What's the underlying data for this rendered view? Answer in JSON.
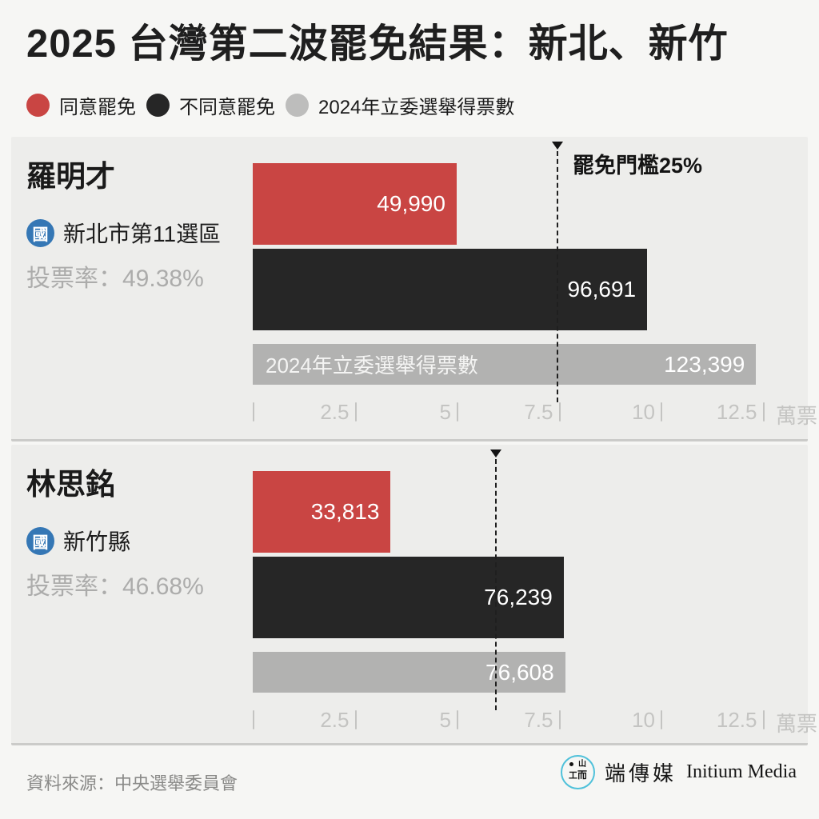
{
  "title": "2025 台灣第二波罷免結果：新北、新竹",
  "legend": {
    "items": [
      {
        "label": "同意罷免",
        "color": "#C94543"
      },
      {
        "label": "不同意罷免",
        "color": "#262626"
      },
      {
        "label": "2024年立委選舉得票數",
        "color": "#BDBDBC"
      }
    ]
  },
  "axis": {
    "tick_labels": [
      "2.5",
      "5",
      "7.5",
      "10",
      "12.5"
    ],
    "unit": "萬票"
  },
  "chart_data": [
    {
      "type": "bar",
      "orientation": "horizontal",
      "title": "羅明才",
      "party": "國",
      "district": "新北市第11選區",
      "turnout_label": "投票率：49.38%",
      "turnout_pct": 49.38,
      "categories": [
        "同意罷免",
        "不同意罷免",
        "2024年立委選舉得票數"
      ],
      "values": [
        49990,
        96691,
        123399
      ],
      "value_labels": [
        "49,990",
        "96,691",
        "123,399"
      ],
      "bar_colors": [
        "#C94543",
        "#262626",
        "#B2B2B1"
      ],
      "inbar_category_label": "2024年立委選舉得票數",
      "x_ticks": [
        2.5,
        5,
        7.5,
        10,
        12.5
      ],
      "x_unit": "萬票",
      "xlim": [
        0,
        13.5
      ],
      "threshold": {
        "label": "罷免門檻25%",
        "x_wan": 7.45
      }
    },
    {
      "type": "bar",
      "orientation": "horizontal",
      "title": "林思銘",
      "party": "國",
      "district": "新竹縣",
      "turnout_label": "投票率：46.68%",
      "turnout_pct": 46.68,
      "categories": [
        "同意罷免",
        "不同意罷免",
        "2024年立委選舉得票數"
      ],
      "values": [
        33813,
        76239,
        76608
      ],
      "value_labels": [
        "33,813",
        "76,239",
        "76,608"
      ],
      "bar_colors": [
        "#C94543",
        "#262626",
        "#B2B2B1"
      ],
      "x_ticks": [
        2.5,
        5,
        7.5,
        10,
        12.5
      ],
      "x_unit": "萬票",
      "xlim": [
        0,
        13.5
      ],
      "threshold": {
        "label": "",
        "x_wan": 5.94
      }
    }
  ],
  "footer": {
    "source": "資料來源：中央選舉委員會",
    "brand_zh": "端傳媒",
    "brand_en": "Initium Media",
    "logo_glyphs": {
      "tr": "山",
      "bl": "工",
      "br": "而"
    },
    "logo_color": "#4FC1DA"
  }
}
